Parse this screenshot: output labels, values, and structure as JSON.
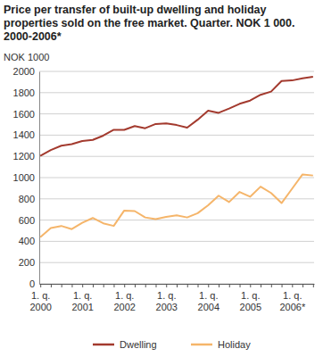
{
  "chart_data": {
    "type": "line",
    "title": [
      "Price per transfer of built-up dwelling and holiday",
      "properties sold on the free market. Quarter. NOK 1 000.",
      "2000-2006*"
    ],
    "y_label": "NOK 1000",
    "categories": [
      "1. q. 2000",
      null,
      null,
      null,
      "1. q. 2001",
      null,
      null,
      null,
      "1. q. 2002",
      null,
      null,
      null,
      "1. q. 2003",
      null,
      null,
      null,
      "1. q. 2004",
      null,
      null,
      null,
      "1. q. 2005",
      null,
      null,
      null,
      "1. q. 2006*",
      null,
      null
    ],
    "series": [
      {
        "name": "Dwelling",
        "color": "#a33a2e",
        "values": [
          1205,
          1260,
          1300,
          1315,
          1345,
          1355,
          1395,
          1450,
          1450,
          1485,
          1465,
          1505,
          1510,
          1495,
          1470,
          1545,
          1630,
          1610,
          1650,
          1695,
          1725,
          1780,
          1810,
          1910,
          1915,
          1935,
          1950
        ]
      },
      {
        "name": "Holiday",
        "color": "#f5b56a",
        "values": [
          440,
          525,
          545,
          515,
          575,
          620,
          570,
          545,
          690,
          685,
          625,
          610,
          630,
          645,
          625,
          665,
          740,
          830,
          770,
          865,
          820,
          915,
          855,
          760,
          895,
          1030,
          1020
        ]
      }
    ],
    "ylim": [
      0,
      2000
    ],
    "yticks": [
      0,
      200,
      400,
      600,
      800,
      1000,
      1200,
      1400,
      1600,
      1800,
      2000
    ],
    "grid": true,
    "legend": "bottom"
  }
}
